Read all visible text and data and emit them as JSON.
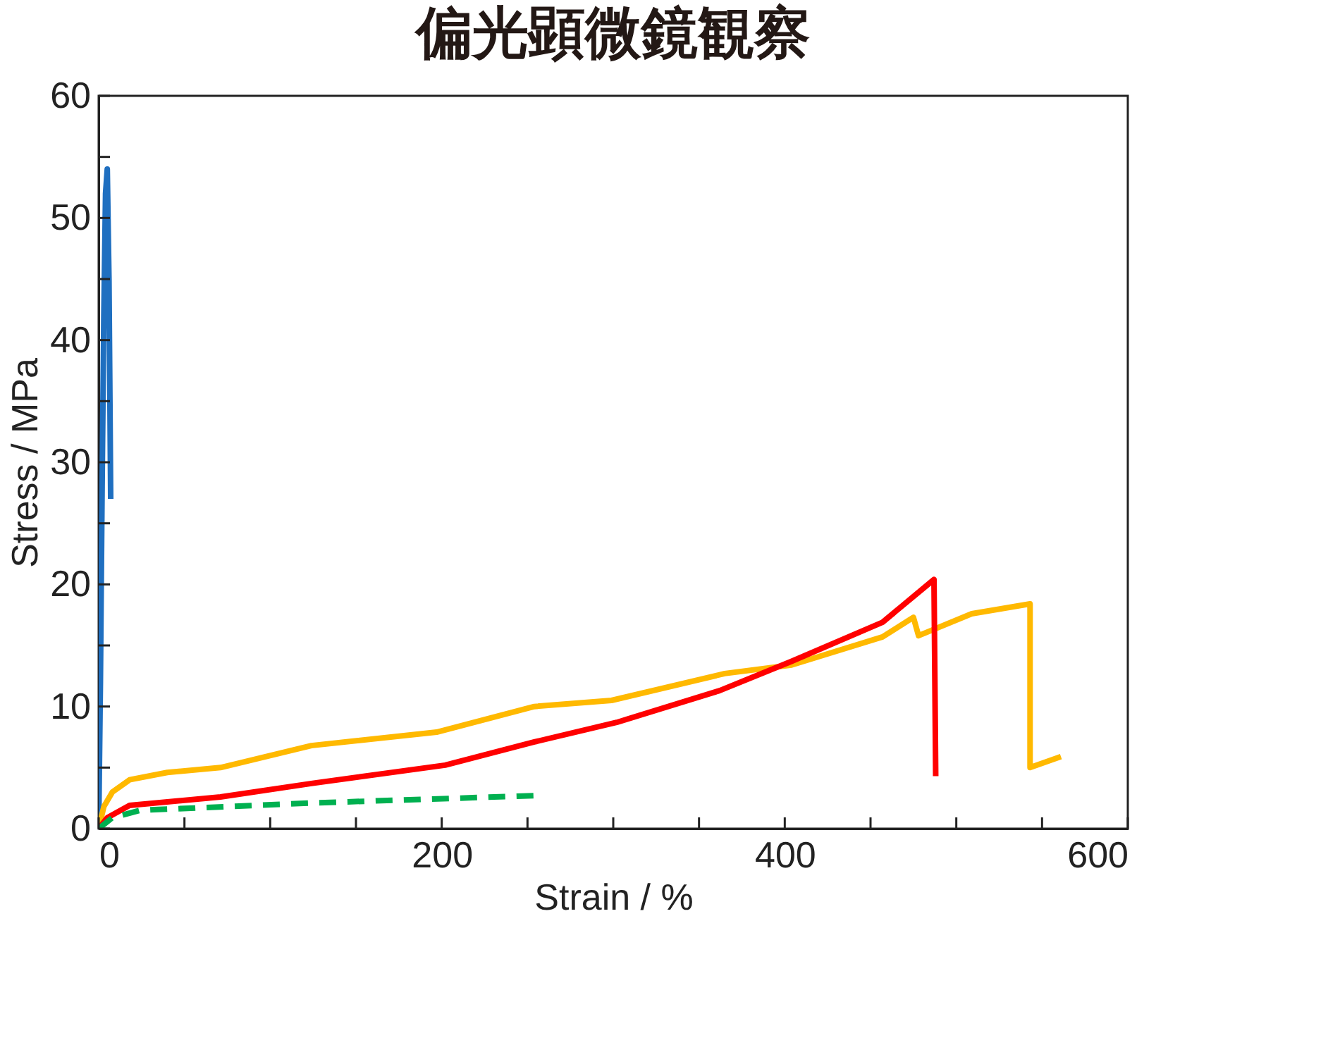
{
  "chart_data": {
    "type": "line",
    "title": "偏光顕微鏡観察",
    "xlabel": "Strain / %",
    "ylabel": "Stress / MPa",
    "xlim": [
      0,
      600
    ],
    "ylim": [
      0,
      60
    ],
    "xticks": [
      0,
      {
        "value": 50,
        "label": null
      },
      {
        "value": 100,
        "label": null
      },
      {
        "value": 150,
        "label": null
      },
      200,
      {
        "value": 250,
        "label": null
      },
      {
        "value": 300,
        "label": null
      },
      {
        "value": 350,
        "label": null
      },
      400,
      {
        "value": 450,
        "label": null
      },
      {
        "value": 500,
        "label": null
      },
      {
        "value": 550,
        "label": null
      },
      600
    ],
    "yticks": [
      0,
      {
        "value": 5,
        "label": null
      },
      10,
      {
        "value": 15,
        "label": null
      },
      20,
      {
        "value": 25,
        "label": null
      },
      30,
      {
        "value": 35,
        "label": null
      },
      40,
      {
        "value": 45,
        "label": null
      },
      50,
      {
        "value": 55,
        "label": null
      },
      60
    ],
    "grid": false,
    "legend": false,
    "marker": "none",
    "series": [
      {
        "color": "#1f6fc0",
        "line_style": "solid",
        "x": [
          0,
          1,
          2,
          3,
          4,
          5,
          6,
          7
        ],
        "values": [
          0,
          12,
          28,
          42,
          52,
          54,
          45,
          27
        ]
      },
      {
        "color": "#ffb900",
        "line_style": "solid",
        "x": [
          0,
          3,
          8,
          18,
          40,
          71,
          124,
          197,
          254,
          299,
          365,
          404,
          457,
          475,
          478,
          509,
          543,
          543,
          561
        ],
        "values": [
          0,
          1.8,
          3.0,
          4.0,
          4.6,
          5.0,
          6.8,
          7.9,
          10.0,
          10.5,
          12.7,
          13.4,
          15.7,
          17.3,
          15.8,
          17.6,
          18.4,
          5.0,
          5.9
        ]
      },
      {
        "color": "#ff0000",
        "line_style": "solid",
        "x": [
          0,
          5,
          18,
          71,
          124,
          202,
          254,
          302,
          362,
          404,
          457,
          487,
          488
        ],
        "values": [
          0,
          0.9,
          1.9,
          2.6,
          3.7,
          5.2,
          7.1,
          8.7,
          11.3,
          13.7,
          16.9,
          20.4,
          4.3
        ]
      },
      {
        "color": "#00b050",
        "line_style": "dashed",
        "x": [
          0,
          8,
          24,
          124,
          254
        ],
        "values": [
          0,
          0.9,
          1.5,
          2.1,
          2.7
        ]
      }
    ]
  }
}
